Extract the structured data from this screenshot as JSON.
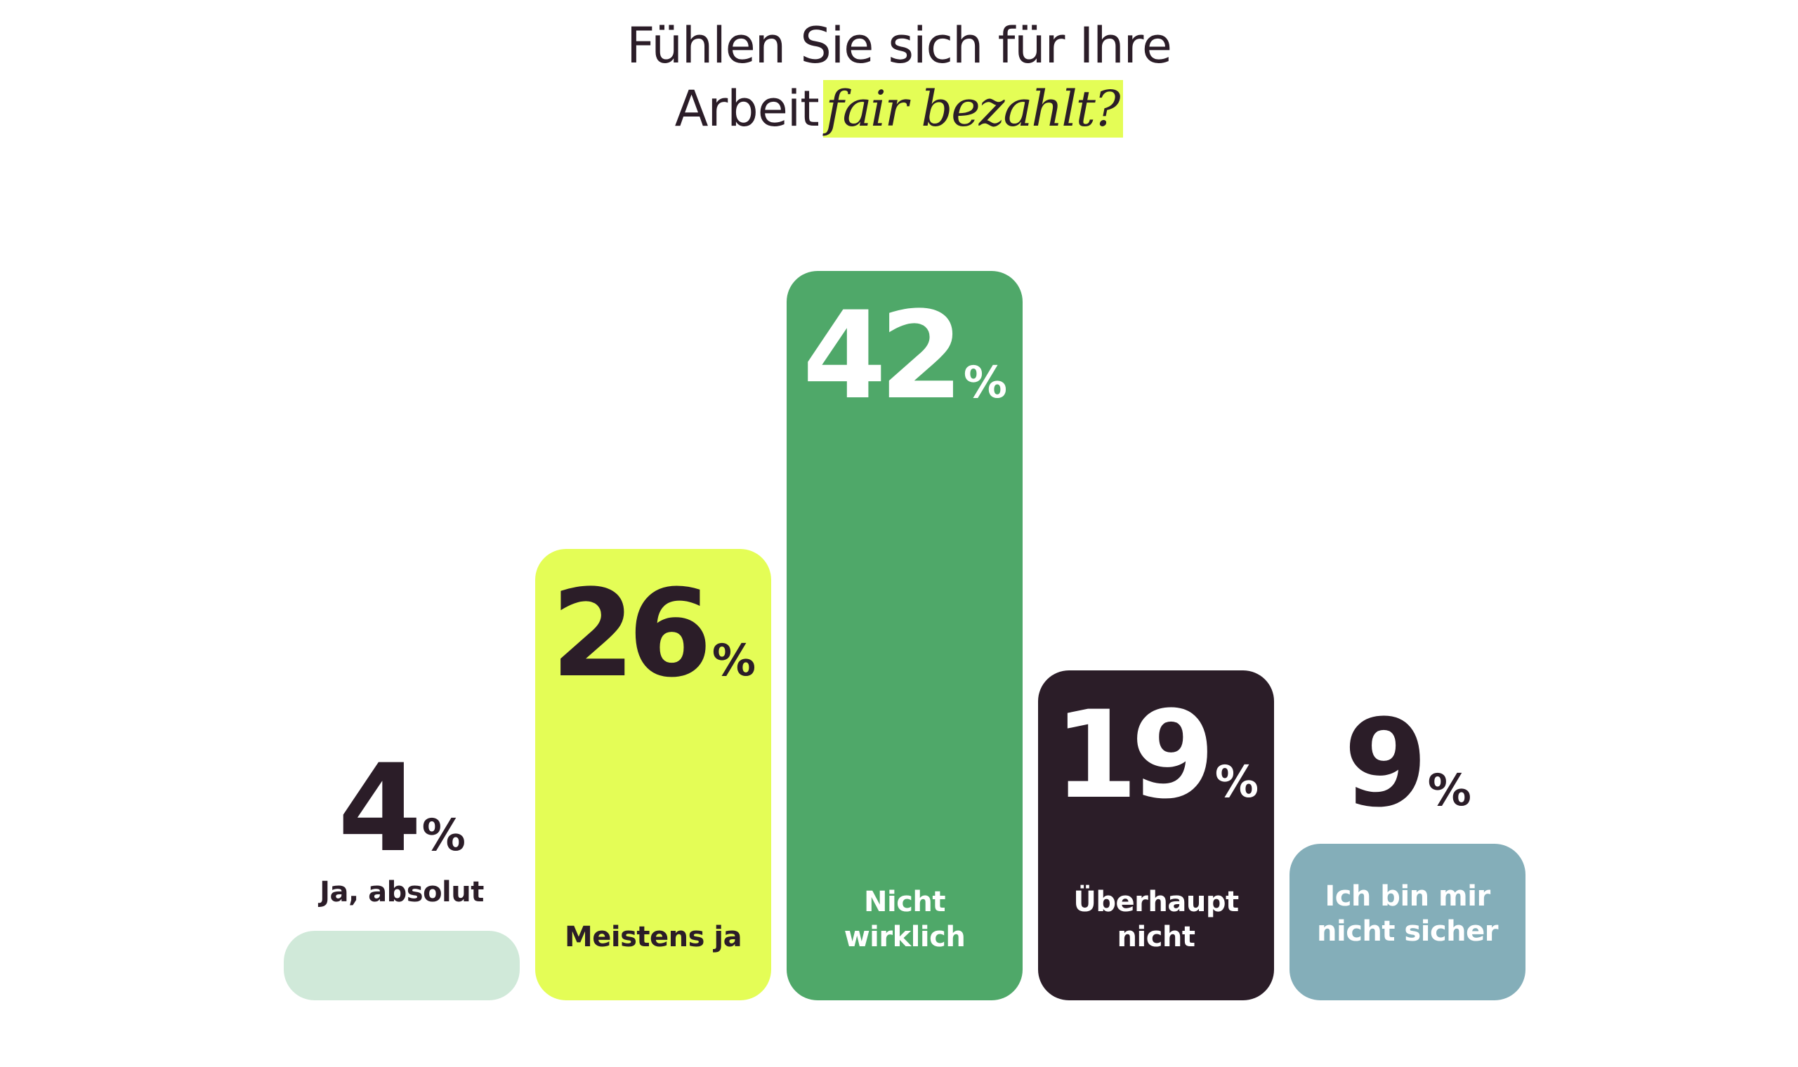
{
  "title": {
    "line1": "Fühlen Sie sich für Ihre",
    "line2_plain": "Arbeit",
    "line2_highlight": "fair bezahlt?",
    "highlight_color": "#e4fd56"
  },
  "chart_data": {
    "type": "bar",
    "title": "Fühlen Sie sich für Ihre Arbeit fair bezahlt?",
    "categories": [
      "Ja, absolut",
      "Meistens ja",
      "Nicht wirklich",
      "Überhaupt nicht",
      "Ich bin mir nicht sicher"
    ],
    "values": [
      4,
      26,
      42,
      19,
      9
    ],
    "unit": "%",
    "value_labels": [
      "4",
      "26",
      "42",
      "19",
      "9"
    ],
    "colors": [
      "#d0e9d9",
      "#e4fd56",
      "#4fa869",
      "#2b1d28",
      "#84aeb9"
    ],
    "label_colors": [
      "#2b1d28",
      "#2b1d28",
      "#ffffff",
      "#ffffff",
      "#ffffff"
    ],
    "value_colors": [
      "#2b1d28",
      "#2b1d28",
      "#ffffff",
      "#ffffff",
      "#2b1d28"
    ],
    "xlabel": "",
    "ylabel": "",
    "ylim": [
      0,
      42
    ],
    "grid": false,
    "legend": "none"
  }
}
